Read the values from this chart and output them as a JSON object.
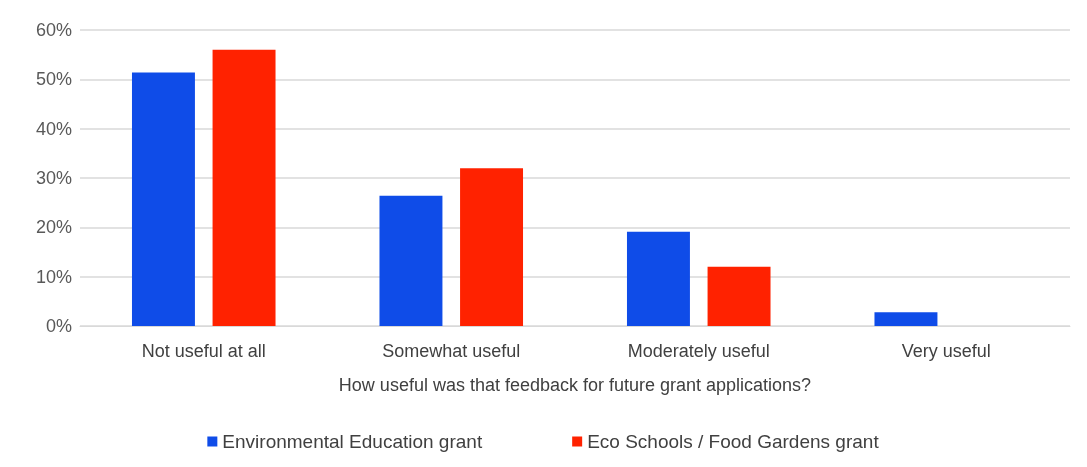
{
  "chart_data": {
    "type": "bar",
    "xlabel": "How useful was that feedback for future grant applications?",
    "categories": [
      "Not useful at all",
      "Somewhat useful",
      "Moderately useful",
      "Very useful"
    ],
    "series": [
      {
        "name": "Environmental Education grant",
        "color": "#0f4ce8",
        "values": [
          51.4,
          26.4,
          19.1,
          2.8
        ]
      },
      {
        "name": "Eco Schools / Food Gardens grant",
        "color": "#ff2200",
        "values": [
          56,
          32,
          12,
          0
        ]
      }
    ],
    "ylim": [
      0,
      60
    ],
    "yticks": [
      {
        "value": 0,
        "label": "0%"
      },
      {
        "value": 10,
        "label": "10%"
      },
      {
        "value": 20,
        "label": "20%"
      },
      {
        "value": 30,
        "label": "30%"
      },
      {
        "value": 40,
        "label": "40%"
      },
      {
        "value": 50,
        "label": "50%"
      },
      {
        "value": 60,
        "label": "60%"
      }
    ],
    "grid": "y",
    "legend": "bottom"
  }
}
